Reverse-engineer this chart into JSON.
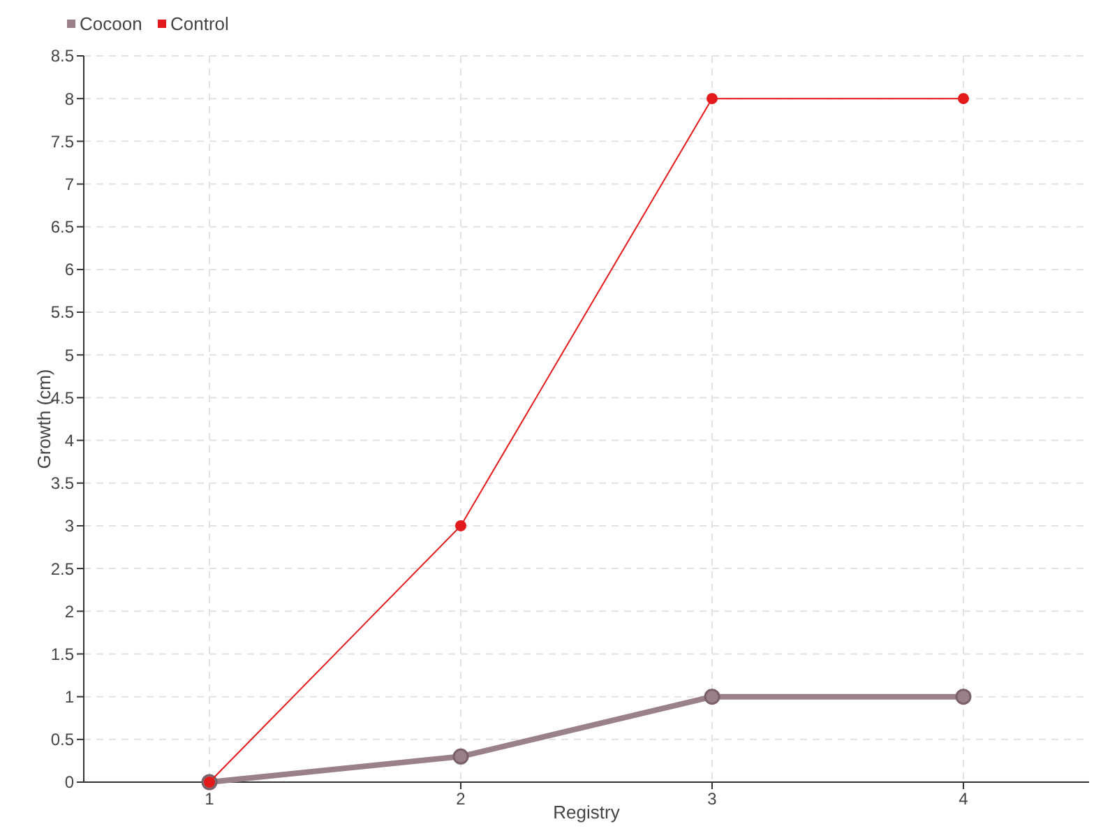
{
  "chart_data": {
    "type": "line",
    "xlabel": "Registry",
    "ylabel": "Growth (cm)",
    "x": [
      1,
      2,
      3,
      4
    ],
    "xlim": [
      0.5,
      4.5
    ],
    "xticks": [
      1,
      2,
      3,
      4
    ],
    "ylim": [
      0,
      8.5
    ],
    "yticks": [
      0,
      0.5,
      1,
      1.5,
      2,
      2.5,
      3,
      3.5,
      4,
      4.5,
      5,
      5.5,
      6,
      6.5,
      7,
      7.5,
      8,
      8.5
    ],
    "grid": true,
    "legend": "top left",
    "marker": "circle",
    "series": [
      {
        "name": "Cocoon",
        "color": "#9a8088",
        "values": [
          0,
          0.3,
          1,
          1
        ]
      },
      {
        "name": "Control",
        "color": "#e31a1c",
        "values": [
          0,
          3,
          8,
          8
        ]
      }
    ]
  }
}
